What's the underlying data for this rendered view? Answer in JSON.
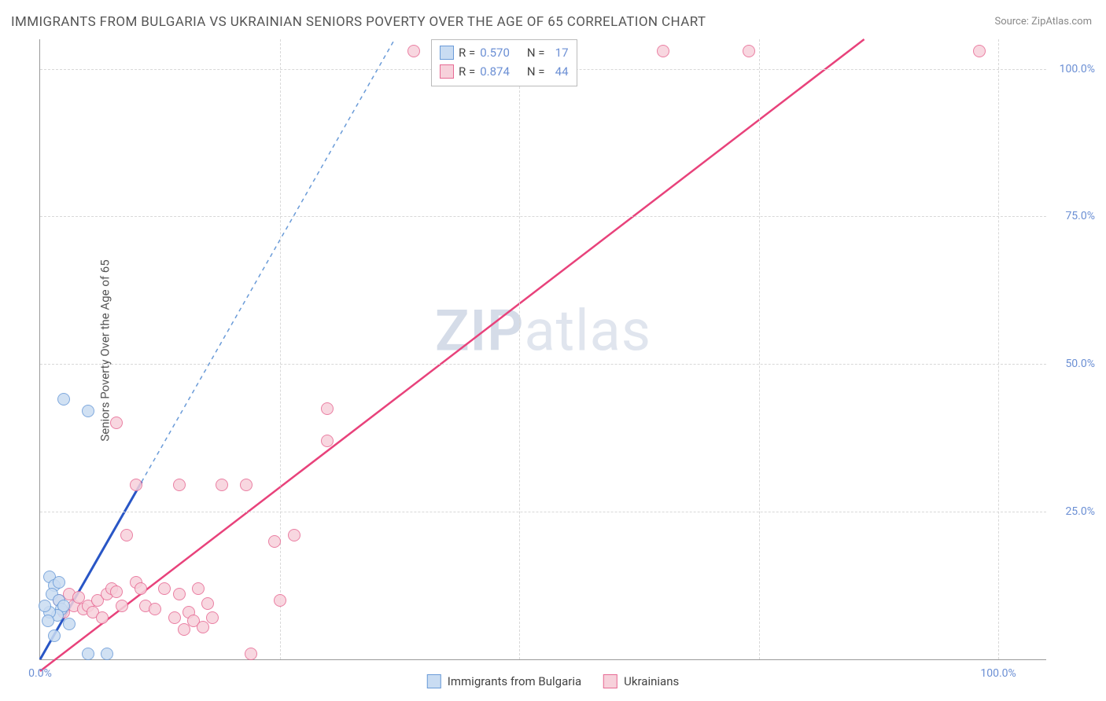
{
  "title": "IMMIGRANTS FROM BULGARIA VS UKRAINIAN SENIORS POVERTY OVER THE AGE OF 65 CORRELATION CHART",
  "source": "Source: ZipAtlas.com",
  "y_axis_title": "Seniors Poverty Over the Age of 65",
  "watermark_a": "ZIP",
  "watermark_b": "atlas",
  "chart": {
    "type": "scatter",
    "xlim": [
      0,
      105
    ],
    "ylim": [
      0,
      105
    ],
    "x_ticks": [
      0,
      25,
      50,
      75,
      100
    ],
    "y_ticks": [
      25,
      50,
      75,
      100
    ],
    "x_tick_labels": [
      "0.0%",
      "",
      "",
      "",
      "100.0%"
    ],
    "y_tick_labels": [
      "25.0%",
      "50.0%",
      "75.0%",
      "100.0%"
    ],
    "grid_color": "#d8d8d8",
    "background_color": "#ffffff",
    "axis_color": "#999999",
    "tick_label_color": "#6b8fd4",
    "marker_radius": 8,
    "series": [
      {
        "name": "Immigrants from Bulgaria",
        "fill": "#c9dcf2",
        "stroke": "#6a9bd8",
        "trend_solid_color": "#2956c6",
        "trend_dash_color": "#6a9bd8",
        "trend": {
          "x1": 0,
          "y1": 0,
          "x2": 37,
          "y2": 105,
          "solid_until_x": 10.6
        },
        "R": "0.570",
        "N": "17",
        "points": [
          [
            1.0,
            14.0
          ],
          [
            1.5,
            12.5
          ],
          [
            1.2,
            11.0
          ],
          [
            2.0,
            10.0
          ],
          [
            2.2,
            8.5
          ],
          [
            2.5,
            9.0
          ],
          [
            1.8,
            7.5
          ],
          [
            1.0,
            8.0
          ],
          [
            3.0,
            6.0
          ],
          [
            0.8,
            6.5
          ],
          [
            1.5,
            4.0
          ],
          [
            0.5,
            9.0
          ],
          [
            2.5,
            44.0
          ],
          [
            5.0,
            42.0
          ],
          [
            5.0,
            1.0
          ],
          [
            7.0,
            1.0
          ],
          [
            2.0,
            13.0
          ]
        ]
      },
      {
        "name": "Ukrainians",
        "fill": "#f7d1db",
        "stroke": "#e76a94",
        "trend_solid_color": "#e8427b",
        "trend": {
          "x1": 0,
          "y1": -2,
          "x2": 86,
          "y2": 105
        },
        "R": "0.874",
        "N": "44",
        "points": [
          [
            2.0,
            10.0
          ],
          [
            2.5,
            8.0
          ],
          [
            3.0,
            11.0
          ],
          [
            3.5,
            9.0
          ],
          [
            4.0,
            10.5
          ],
          [
            4.5,
            8.5
          ],
          [
            5.0,
            9.0
          ],
          [
            5.5,
            8.0
          ],
          [
            6.0,
            10.0
          ],
          [
            6.5,
            7.0
          ],
          [
            7.0,
            11.0
          ],
          [
            7.5,
            12.0
          ],
          [
            8.0,
            11.5
          ],
          [
            8.5,
            9.0
          ],
          [
            9.0,
            21.0
          ],
          [
            10.0,
            13.0
          ],
          [
            10.5,
            12.0
          ],
          [
            11.0,
            9.0
          ],
          [
            12.0,
            8.5
          ],
          [
            13.0,
            12.0
          ],
          [
            14.0,
            7.0
          ],
          [
            14.5,
            11.0
          ],
          [
            15.0,
            5.0
          ],
          [
            15.5,
            8.0
          ],
          [
            16.0,
            6.5
          ],
          [
            16.5,
            12.0
          ],
          [
            17.0,
            5.5
          ],
          [
            17.5,
            9.5
          ],
          [
            18.0,
            7.0
          ],
          [
            8.0,
            40.0
          ],
          [
            10.0,
            29.5
          ],
          [
            14.5,
            29.5
          ],
          [
            19.0,
            29.5
          ],
          [
            21.5,
            29.5
          ],
          [
            25.0,
            10.0
          ],
          [
            24.5,
            20.0
          ],
          [
            26.5,
            21.0
          ],
          [
            30.0,
            37.0
          ],
          [
            30.0,
            42.5
          ],
          [
            22.0,
            1.0
          ],
          [
            39.0,
            103.0
          ],
          [
            65.0,
            103.0
          ],
          [
            74.0,
            103.0
          ],
          [
            98.0,
            103.0
          ]
        ]
      }
    ]
  },
  "legend_box": {
    "rows": [
      {
        "swatch_fill": "#c9dcf2",
        "swatch_stroke": "#6a9bd8",
        "r_label": "R =",
        "r_val": "0.570",
        "n_label": "N =",
        "n_val": "17"
      },
      {
        "swatch_fill": "#f7d1db",
        "swatch_stroke": "#e76a94",
        "r_label": "R =",
        "r_val": "0.874",
        "n_label": "N =",
        "n_val": "44"
      }
    ]
  },
  "bottom_legend": [
    {
      "swatch_fill": "#c9dcf2",
      "swatch_stroke": "#6a9bd8",
      "label": "Immigrants from Bulgaria"
    },
    {
      "swatch_fill": "#f7d1db",
      "swatch_stroke": "#e76a94",
      "label": "Ukrainians"
    }
  ]
}
